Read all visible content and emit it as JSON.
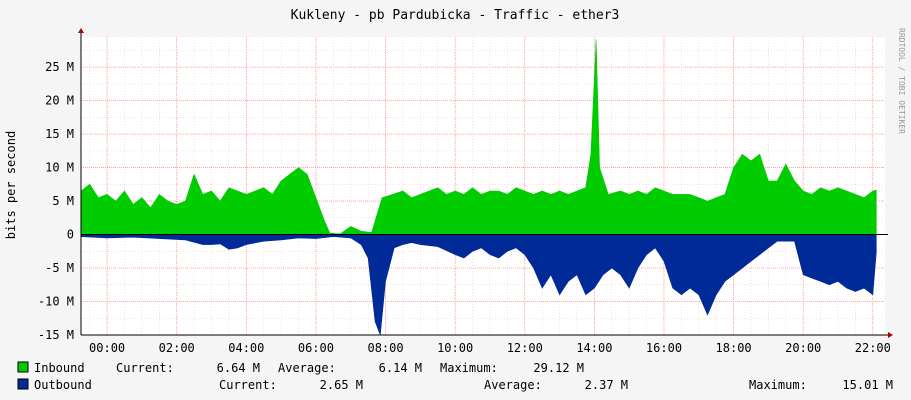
{
  "title": "Kukleny - pb Pardubicka - Traffic - ether3",
  "watermark": "RRDTOOL / TOBI OETIKER",
  "colors": {
    "background": "#f5f5f5",
    "plot_background": "#ffffff",
    "grid": "#ff9999",
    "inbound": "#00cc00",
    "outbound": "#002a97",
    "zero_line": "#000000"
  },
  "chart_data": {
    "type": "area",
    "title": "Kukleny - pb Pardubicka - Traffic - ether3",
    "ylabel": "bits per second",
    "xlabel": "",
    "x_unit": "hours (time of day, continuous from about 23:15 to 22:20)",
    "xlim": [
      -0.75,
      22.35
    ],
    "ylim": [
      -15,
      29.5
    ],
    "grid": true,
    "x_tick_labels": [
      "00:00",
      "02:00",
      "04:00",
      "06:00",
      "08:00",
      "10:00",
      "12:00",
      "14:00",
      "16:00",
      "18:00",
      "20:00",
      "22:00"
    ],
    "x_tick_values": [
      0,
      2,
      4,
      6,
      8,
      10,
      12,
      14,
      16,
      18,
      20,
      22
    ],
    "y_tick_labels": [
      "-15 M",
      "-10 M",
      "-5 M",
      "0",
      "5 M",
      "10 M",
      "15 M",
      "20 M",
      "25 M"
    ],
    "y_tick_values": [
      -15,
      -10,
      -5,
      0,
      5,
      10,
      15,
      20,
      25
    ],
    "y_unit": "Mbit/s",
    "series": [
      {
        "name": "Inbound",
        "color": "#00cc00",
        "points": [
          [
            -0.75,
            6.5
          ],
          [
            -0.5,
            7.5
          ],
          [
            -0.25,
            5.5
          ],
          [
            0,
            6
          ],
          [
            0.25,
            5
          ],
          [
            0.5,
            6.5
          ],
          [
            0.75,
            4.5
          ],
          [
            1,
            5.5
          ],
          [
            1.25,
            4
          ],
          [
            1.5,
            6
          ],
          [
            1.75,
            5
          ],
          [
            2,
            4.5
          ],
          [
            2.25,
            5
          ],
          [
            2.5,
            9
          ],
          [
            2.75,
            6
          ],
          [
            3,
            6.5
          ],
          [
            3.25,
            5
          ],
          [
            3.5,
            7
          ],
          [
            3.75,
            6.5
          ],
          [
            4,
            6
          ],
          [
            4.25,
            6.5
          ],
          [
            4.5,
            7
          ],
          [
            4.75,
            6
          ],
          [
            5,
            8
          ],
          [
            5.25,
            9
          ],
          [
            5.5,
            10
          ],
          [
            5.75,
            9
          ],
          [
            6,
            5.5
          ],
          [
            6.25,
            2
          ],
          [
            6.4,
            0.2
          ],
          [
            6.7,
            0.1
          ],
          [
            7,
            1.2
          ],
          [
            7.3,
            0.5
          ],
          [
            7.6,
            0.3
          ],
          [
            7.9,
            5.5
          ],
          [
            8.2,
            6
          ],
          [
            8.5,
            6.5
          ],
          [
            8.75,
            5.5
          ],
          [
            9,
            6
          ],
          [
            9.25,
            6.5
          ],
          [
            9.5,
            7
          ],
          [
            9.75,
            6
          ],
          [
            10,
            6.5
          ],
          [
            10.25,
            6
          ],
          [
            10.5,
            7
          ],
          [
            10.75,
            6
          ],
          [
            11,
            6.5
          ],
          [
            11.25,
            6.5
          ],
          [
            11.5,
            6
          ],
          [
            11.75,
            7
          ],
          [
            12,
            6.5
          ],
          [
            12.25,
            6
          ],
          [
            12.5,
            6.5
          ],
          [
            12.75,
            6
          ],
          [
            13,
            6.5
          ],
          [
            13.25,
            6
          ],
          [
            13.5,
            6.5
          ],
          [
            13.75,
            7
          ],
          [
            13.9,
            12
          ],
          [
            14.05,
            29.12
          ],
          [
            14.15,
            10
          ],
          [
            14.4,
            6
          ],
          [
            14.75,
            6.5
          ],
          [
            15,
            6
          ],
          [
            15.25,
            6.5
          ],
          [
            15.5,
            6
          ],
          [
            15.75,
            7
          ],
          [
            16,
            6.5
          ],
          [
            16.25,
            6
          ],
          [
            16.5,
            6
          ],
          [
            16.75,
            6
          ],
          [
            17,
            5.5
          ],
          [
            17.25,
            5
          ],
          [
            17.5,
            5.5
          ],
          [
            17.75,
            6
          ],
          [
            18,
            10
          ],
          [
            18.25,
            12
          ],
          [
            18.5,
            11
          ],
          [
            18.75,
            12
          ],
          [
            19,
            8
          ],
          [
            19.25,
            8
          ],
          [
            19.5,
            10.5
          ],
          [
            19.75,
            8
          ],
          [
            20,
            6.5
          ],
          [
            20.25,
            6
          ],
          [
            20.5,
            7
          ],
          [
            20.75,
            6.5
          ],
          [
            21,
            7
          ],
          [
            21.25,
            6.5
          ],
          [
            21.5,
            6
          ],
          [
            21.75,
            5.5
          ],
          [
            22,
            6.5
          ],
          [
            22.1,
            6.64
          ]
        ]
      },
      {
        "name": "Outbound",
        "color": "#002a97",
        "points": [
          [
            -0.75,
            -0.3
          ],
          [
            0,
            -0.5
          ],
          [
            0.75,
            -0.4
          ],
          [
            1.5,
            -0.6
          ],
          [
            2.25,
            -0.8
          ],
          [
            2.75,
            -1.5
          ],
          [
            3,
            -1.5
          ],
          [
            3.25,
            -1.4
          ],
          [
            3.5,
            -2.2
          ],
          [
            3.75,
            -2
          ],
          [
            4,
            -1.5
          ],
          [
            4.5,
            -1
          ],
          [
            5,
            -0.8
          ],
          [
            5.5,
            -0.5
          ],
          [
            6,
            -0.6
          ],
          [
            6.5,
            -0.3
          ],
          [
            7,
            -0.5
          ],
          [
            7.3,
            -1.5
          ],
          [
            7.5,
            -3.5
          ],
          [
            7.7,
            -13
          ],
          [
            7.85,
            -15
          ],
          [
            8,
            -7
          ],
          [
            8.25,
            -2
          ],
          [
            8.5,
            -1.5
          ],
          [
            8.75,
            -1.2
          ],
          [
            9,
            -1.5
          ],
          [
            9.5,
            -1.8
          ],
          [
            10,
            -3
          ],
          [
            10.25,
            -3.5
          ],
          [
            10.5,
            -2.5
          ],
          [
            10.75,
            -2
          ],
          [
            11,
            -3
          ],
          [
            11.25,
            -3.5
          ],
          [
            11.5,
            -2.5
          ],
          [
            11.75,
            -2
          ],
          [
            12,
            -3
          ],
          [
            12.25,
            -5
          ],
          [
            12.5,
            -8
          ],
          [
            12.75,
            -6
          ],
          [
            13,
            -9
          ],
          [
            13.25,
            -7
          ],
          [
            13.5,
            -6
          ],
          [
            13.75,
            -9
          ],
          [
            14,
            -8
          ],
          [
            14.25,
            -6
          ],
          [
            14.5,
            -5
          ],
          [
            14.75,
            -6
          ],
          [
            15,
            -8
          ],
          [
            15.25,
            -5
          ],
          [
            15.5,
            -3
          ],
          [
            15.75,
            -2
          ],
          [
            16,
            -4
          ],
          [
            16.25,
            -8
          ],
          [
            16.5,
            -9
          ],
          [
            16.75,
            -8
          ],
          [
            17,
            -9
          ],
          [
            17.25,
            -12
          ],
          [
            17.5,
            -9
          ],
          [
            17.75,
            -7
          ],
          [
            18,
            -6
          ],
          [
            18.25,
            -5
          ],
          [
            18.5,
            -4
          ],
          [
            18.75,
            -3
          ],
          [
            19,
            -2
          ],
          [
            19.25,
            -1
          ],
          [
            19.5,
            -1
          ],
          [
            19.75,
            -1
          ],
          [
            20,
            -6
          ],
          [
            20.25,
            -6.5
          ],
          [
            20.5,
            -7
          ],
          [
            20.75,
            -7.5
          ],
          [
            21,
            -7
          ],
          [
            21.25,
            -8
          ],
          [
            21.5,
            -8.5
          ],
          [
            21.75,
            -8
          ],
          [
            22,
            -9
          ],
          [
            22.1,
            -2.65
          ]
        ]
      }
    ],
    "legend": [
      {
        "name": "Inbound",
        "color": "#00cc00",
        "current_label": "Current:",
        "current": "6.64 M",
        "average_label": "Average:",
        "average": "6.14 M",
        "maximum_label": "Maximum:",
        "maximum": "29.12 M"
      },
      {
        "name": "Outbound",
        "color": "#002a97",
        "current_label": "Current:",
        "current": "2.65 M",
        "average_label": "Average:",
        "average": "2.37 M",
        "maximum_label": "Maximum:",
        "maximum": "15.01 M"
      }
    ]
  }
}
